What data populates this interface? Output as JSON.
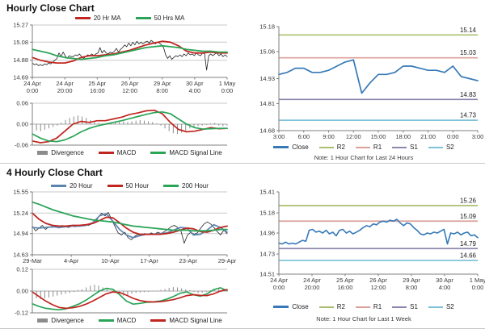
{
  "titles": {
    "hourly": "Hourly Close Chart",
    "four_hourly": "4 Hourly Close Chart"
  },
  "notes": {
    "hourly": "Note: 1 Hour Chart for Last 24 Hours",
    "four_hourly": "Note: 1 Hour Chart for Last 1 Week"
  },
  "colors": {
    "ma_red": "#c0251f",
    "ma_green": "#2aa558",
    "ma_blue": "#5b83b0",
    "close_blue": "#3579b8",
    "r2": "#a9bf6f",
    "r1": "#dca09a",
    "s1": "#8e86ae",
    "s2": "#7fc2d8",
    "divergence": "#8c8c8c",
    "price_black": "#222222"
  },
  "chart_data": [
    {
      "id": "hourly_price",
      "type": "line",
      "title": "Hourly Close Chart",
      "ylim": [
        14.69,
        15.27
      ],
      "yticks": [
        "15.27",
        "15.08",
        "14.88",
        "14.69"
      ],
      "gridlines": [
        15.27,
        15.08,
        14.88
      ],
      "x_labels": [
        "24 Apr|0:00",
        "24 Apr|20:00",
        "25 Apr|16:00",
        "26 Apr|12:00",
        "29 Apr|8:00",
        "30 Apr|4:00",
        "1 May|0:00"
      ],
      "legend": [
        {
          "label": "20 Hr MA",
          "color": "#c0251f",
          "swatch": "thick"
        },
        {
          "label": "50 Hrs MA",
          "color": "#2aa558",
          "swatch": "thick"
        }
      ],
      "series": [
        {
          "name": "Close",
          "color": "#222222",
          "width": 0.8,
          "values": [
            14.85,
            14.83,
            14.84,
            14.82,
            14.83,
            14.82,
            14.84,
            14.83,
            14.85,
            14.84,
            14.86,
            14.88,
            14.9,
            14.96,
            14.92,
            14.97,
            14.93,
            14.9,
            14.93,
            14.92,
            14.92,
            14.94,
            14.93,
            14.95,
            14.92,
            14.9,
            14.92,
            14.94,
            14.93,
            14.95,
            14.93,
            14.95,
            14.96,
            15.02,
            14.96,
            14.99,
            14.96,
            14.95,
            14.97,
            14.96,
            14.98,
            15.01,
            14.97,
            15.0,
            15.02,
            15.05,
            15.03,
            15.07,
            15.04,
            15.08,
            15.05,
            15.09,
            15.06,
            15.08,
            15.06,
            15.08,
            15.09,
            15.07,
            15.1,
            15.08,
            15.06,
            15.08,
            15.07,
            15.05,
            15.02,
            14.94,
            14.9,
            14.93,
            14.89,
            14.91,
            14.93,
            14.92,
            14.94,
            14.92,
            14.95,
            14.93,
            14.96,
            14.94,
            14.95,
            14.93,
            14.96,
            14.94,
            14.93,
            14.96,
            14.95,
            14.77,
            14.93,
            14.95,
            14.93,
            14.95,
            14.96,
            14.93,
            14.95,
            14.92,
            14.94,
            14.92
          ]
        },
        {
          "name": "20 Hr MA",
          "color": "#c0251f",
          "width": 1.8,
          "values": [
            14.91,
            14.88,
            14.86,
            14.85,
            14.85,
            14.87,
            14.91,
            14.93,
            14.93,
            14.94,
            14.95,
            14.97,
            14.99,
            15.02,
            15.05,
            15.07,
            15.09,
            15.08,
            15.04,
            14.98,
            14.96,
            14.96,
            14.97,
            14.96,
            14.96
          ]
        },
        {
          "name": "50 Hrs MA",
          "color": "#2aa558",
          "width": 1.8,
          "values": [
            15.0,
            14.98,
            14.96,
            14.93,
            14.91,
            14.9,
            14.89,
            14.9,
            14.91,
            14.93,
            14.94,
            14.96,
            14.98,
            15.0,
            15.02,
            15.03,
            15.04,
            15.03,
            15.02,
            15.0,
            14.99,
            14.98,
            14.98,
            14.97,
            14.97
          ]
        }
      ]
    },
    {
      "id": "hourly_macd",
      "type": "bar+line",
      "ylim": [
        -0.06,
        0.06
      ],
      "yticks": [
        "0.06",
        "0.00",
        "-0.06"
      ],
      "gridlines": [
        0.06,
        0
      ],
      "legend": [
        {
          "label": "Divergence",
          "color": "#8c8c8c",
          "swatch": "bar"
        },
        {
          "label": "MACD",
          "color": "#c0251f",
          "swatch": "thick"
        },
        {
          "label": "MACD Signal Line",
          "color": "#2aa558",
          "swatch": "thick"
        }
      ],
      "bars": {
        "name": "Divergence",
        "color": "#8c8c8c",
        "values": [
          -0.012,
          -0.018,
          -0.02,
          -0.016,
          -0.012,
          -0.008,
          -0.004,
          0.004,
          0.012,
          0.018,
          0.022,
          0.025,
          0.022,
          0.018,
          0.012,
          0.008,
          0.004,
          0.002,
          0.004,
          0.006,
          0.008,
          0.01,
          0.008,
          0.006,
          0.008,
          0.01,
          0.012,
          0.01,
          0.008,
          0.006,
          0.002,
          -0.004,
          -0.012,
          -0.02,
          -0.026,
          -0.028,
          -0.024,
          -0.018,
          -0.012,
          -0.008,
          -0.006,
          -0.004,
          -0.002,
          0.002,
          0.004,
          -0.004,
          -0.006,
          -0.004
        ]
      },
      "series": [
        {
          "name": "MACD",
          "color": "#c0251f",
          "width": 1.7,
          "values": [
            -0.048,
            -0.053,
            -0.05,
            -0.04,
            -0.02,
            0.0,
            0.008,
            0.005,
            0.01,
            0.01,
            0.015,
            0.02,
            0.028,
            0.032,
            0.038,
            0.04,
            0.03,
            0.005,
            -0.015,
            -0.022,
            -0.02,
            -0.015,
            -0.01,
            -0.013,
            -0.012
          ]
        },
        {
          "name": "MACD Signal Line",
          "color": "#2aa558",
          "width": 1.7,
          "values": [
            -0.028,
            -0.04,
            -0.048,
            -0.05,
            -0.045,
            -0.035,
            -0.022,
            -0.012,
            -0.005,
            0.0,
            0.005,
            0.01,
            0.016,
            0.022,
            0.028,
            0.033,
            0.035,
            0.03,
            0.015,
            0.0,
            -0.01,
            -0.014,
            -0.013,
            -0.012,
            -0.012
          ]
        }
      ]
    },
    {
      "id": "hourly_sr",
      "type": "line",
      "ylim": [
        14.68,
        15.18
      ],
      "yticks": [
        "15.18",
        "15.06",
        "14.93",
        "14.81",
        "14.68"
      ],
      "x_labels": [
        "3:00",
        "6:00",
        "9:00",
        "12:00",
        "15:00",
        "18:00",
        "21:00",
        "0:00",
        "3:00"
      ],
      "levels": [
        {
          "name": "R2",
          "value": 15.14,
          "label": "15.14",
          "color": "#a9bf6f"
        },
        {
          "name": "R1",
          "value": 15.03,
          "label": "15.03",
          "color": "#dca09a"
        },
        {
          "name": "S1",
          "value": 14.83,
          "label": "14.83",
          "color": "#8e86ae"
        },
        {
          "name": "S2",
          "value": 14.73,
          "label": "14.73",
          "color": "#7fc2d8"
        }
      ],
      "legend": [
        {
          "label": "Close",
          "color": "#3579b8",
          "swatch": "thick"
        },
        {
          "label": "R2",
          "color": "#a9bf6f",
          "swatch": "line"
        },
        {
          "label": "R1",
          "color": "#dca09a",
          "swatch": "line"
        },
        {
          "label": "S1",
          "color": "#8e86ae",
          "swatch": "line"
        },
        {
          "label": "S2",
          "color": "#7fc2d8",
          "swatch": "line"
        }
      ],
      "note": "Note: 1 Hour Chart for Last 24 Hours",
      "series": [
        {
          "name": "Close",
          "color": "#3579b8",
          "width": 1.7,
          "values": [
            14.95,
            14.96,
            14.98,
            14.98,
            14.96,
            14.96,
            14.97,
            14.99,
            15.01,
            15.02,
            14.86,
            14.91,
            14.95,
            14.95,
            14.96,
            14.99,
            14.99,
            14.98,
            14.97,
            14.97,
            14.96,
            14.99,
            14.94,
            14.93,
            14.92
          ]
        }
      ]
    },
    {
      "id": "fourh_price",
      "type": "line",
      "title": "4 Hourly Close Chart",
      "ylim": [
        14.63,
        15.55
      ],
      "yticks": [
        "15.55",
        "15.24",
        "14.94",
        "14.63"
      ],
      "gridlines": [
        15.55,
        15.24,
        14.94
      ],
      "x_labels": [
        "29-Mar",
        "4-Apr",
        "10-Apr",
        "17-Apr",
        "23-Apr",
        "29-Apr"
      ],
      "legend": [
        {
          "label": "20 Hour",
          "color": "#5b83b0",
          "swatch": "thick"
        },
        {
          "label": "50 Hour",
          "color": "#c0251f",
          "swatch": "thick"
        },
        {
          "label": "200 Hour",
          "color": "#2aa558",
          "swatch": "thick"
        }
      ],
      "series": [
        {
          "name": "Close",
          "color": "#222222",
          "width": 0.8,
          "values": [
            15.05,
            14.98,
            15.02,
            15.06,
            15.0,
            15.04,
            15.03,
            15.05,
            15.02,
            15.06,
            15.04,
            15.03,
            15.05,
            15.04,
            15.06,
            15.05,
            15.07,
            15.06,
            15.08,
            15.1,
            15.18,
            15.24,
            15.2,
            15.25,
            15.15,
            15.05,
            14.95,
            14.92,
            14.96,
            14.88,
            14.85,
            14.9,
            14.93,
            14.91,
            14.94,
            14.92,
            14.95,
            14.93,
            14.96,
            14.94,
            14.97,
            15.0,
            15.04,
            15.06,
            15.03,
            14.98,
            14.8,
            14.92,
            14.96,
            14.93,
            14.95,
            15.02,
            15.08,
            15.11,
            15.08,
            15.03,
            14.97,
            14.92,
            14.99,
            14.94
          ]
        },
        {
          "name": "20 Hour",
          "color": "#5b83b0",
          "width": 1.7,
          "values": [
            15.03,
            15.02,
            15.03,
            15.04,
            15.03,
            15.04,
            15.05,
            15.05,
            15.06,
            15.1,
            15.2,
            15.23,
            15.12,
            15.0,
            14.92,
            14.88,
            14.91,
            14.93,
            14.93,
            14.94,
            14.95,
            14.99,
            15.03,
            15.02,
            14.92,
            14.93,
            14.99,
            15.07,
            15.03,
            14.96
          ]
        },
        {
          "name": "50 Hour",
          "color": "#c0251f",
          "width": 1.8,
          "values": [
            15.24,
            15.15,
            15.09,
            15.06,
            15.05,
            15.05,
            15.06,
            15.06,
            15.07,
            15.09,
            15.13,
            15.18,
            15.17,
            15.1,
            15.02,
            14.96,
            14.93,
            14.93,
            14.93,
            14.93,
            14.94,
            14.96,
            14.99,
            15.02,
            15.01,
            14.97,
            14.96,
            14.99,
            15.03,
            15.05
          ]
        },
        {
          "name": "200 Hour",
          "color": "#2aa558",
          "width": 1.8,
          "values": [
            15.4,
            15.37,
            15.33,
            15.29,
            15.26,
            15.23,
            15.2,
            15.18,
            15.16,
            15.14,
            15.13,
            15.12,
            15.11,
            15.09,
            15.07,
            15.05,
            15.04,
            15.03,
            15.02,
            15.01,
            15.0,
            14.99,
            14.99,
            14.99,
            14.98,
            14.98,
            14.98,
            14.99,
            15.0,
            15.0
          ]
        }
      ]
    },
    {
      "id": "fourh_macd",
      "type": "bar+line",
      "ylim": [
        -0.12,
        0.12
      ],
      "yticks": [
        "0.12",
        "0.00",
        "-0.12"
      ],
      "gridlines": [
        0.12,
        0
      ],
      "legend": [
        {
          "label": "Divergence",
          "color": "#8c8c8c",
          "swatch": "bar"
        },
        {
          "label": "MACD",
          "color": "#2aa558",
          "swatch": "thick"
        },
        {
          "label": "MACD Signal Line",
          "color": "#c0251f",
          "swatch": "thick"
        }
      ],
      "bars": {
        "name": "Divergence",
        "color": "#8c8c8c",
        "values": [
          -0.03,
          -0.04,
          -0.045,
          -0.04,
          -0.035,
          -0.03,
          -0.025,
          -0.02,
          -0.015,
          -0.01,
          -0.005,
          0.005,
          0.01,
          0.02,
          0.03,
          0.035,
          0.03,
          0.02,
          0.01,
          0.002,
          -0.005,
          -0.015,
          -0.025,
          -0.02,
          -0.015,
          -0.01,
          -0.008,
          -0.006,
          -0.004,
          -0.002,
          0.002,
          0.006,
          0.012,
          0.018,
          0.022,
          0.02,
          0.015,
          0.01,
          0.005,
          -0.005,
          -0.012,
          -0.008,
          -0.004,
          0.004,
          0.01,
          0.015,
          0.012,
          0.006
        ]
      },
      "series": [
        {
          "name": "MACD",
          "color": "#2aa558",
          "width": 1.7,
          "values": [
            -0.07,
            -0.085,
            -0.095,
            -0.1,
            -0.103,
            -0.098,
            -0.085,
            -0.07,
            -0.05,
            -0.025,
            0.0,
            0.015,
            0.01,
            -0.02,
            -0.055,
            -0.072,
            -0.068,
            -0.062,
            -0.06,
            -0.055,
            -0.045,
            -0.03,
            -0.012,
            -0.005,
            -0.02,
            -0.028,
            -0.015,
            0.008,
            0.018,
            0.002
          ]
        },
        {
          "name": "MACD Signal Line",
          "color": "#c0251f",
          "width": 1.7,
          "values": [
            -0.005,
            -0.03,
            -0.055,
            -0.075,
            -0.09,
            -0.095,
            -0.092,
            -0.085,
            -0.072,
            -0.055,
            -0.035,
            -0.015,
            -0.005,
            -0.008,
            -0.022,
            -0.04,
            -0.052,
            -0.058,
            -0.06,
            -0.058,
            -0.054,
            -0.047,
            -0.037,
            -0.025,
            -0.02,
            -0.024,
            -0.025,
            -0.015,
            0.0,
            0.008
          ]
        }
      ]
    },
    {
      "id": "fourh_sr",
      "type": "line",
      "ylim": [
        14.51,
        15.41
      ],
      "yticks": [
        "15.41",
        "15.18",
        "14.96",
        "14.73",
        "14.51"
      ],
      "x_labels": [
        "24 Apr|0:00",
        "24 Apr|20:00",
        "25 Apr|16:00",
        "26 Apr|12:00",
        "29 Apr|8:00",
        "30 Apr|4:00",
        "1 May|0:00"
      ],
      "levels": [
        {
          "name": "R2",
          "value": 15.26,
          "label": "15.26",
          "color": "#a9bf6f"
        },
        {
          "name": "R1",
          "value": 15.09,
          "label": "15.09",
          "color": "#dca09a"
        },
        {
          "name": "S1",
          "value": 14.79,
          "label": "14.79",
          "color": "#8e86ae"
        },
        {
          "name": "S2",
          "value": 14.66,
          "label": "14.66",
          "color": "#7fc2d8"
        }
      ],
      "legend": [
        {
          "label": "Close",
          "color": "#3579b8",
          "swatch": "thick"
        },
        {
          "label": "R2",
          "color": "#a9bf6f",
          "swatch": "line"
        },
        {
          "label": "R1",
          "color": "#dca09a",
          "swatch": "line"
        },
        {
          "label": "S1",
          "color": "#8e86ae",
          "swatch": "line"
        },
        {
          "label": "S2",
          "color": "#7fc2d8",
          "swatch": "line"
        }
      ],
      "note": "Note: 1 Hour Chart for Last 1 Week",
      "series": [
        {
          "name": "Close",
          "color": "#3579b8",
          "width": 1.6,
          "values": [
            14.85,
            14.84,
            14.86,
            14.84,
            14.85,
            14.84,
            14.86,
            14.88,
            14.87,
            14.99,
            15.0,
            14.97,
            14.98,
            14.96,
            14.99,
            14.95,
            14.97,
            14.93,
            14.99,
            15.0,
            14.96,
            14.98,
            14.95,
            14.97,
            14.99,
            15.02,
            15.04,
            15.03,
            15.06,
            15.05,
            15.08,
            15.09,
            15.08,
            15.1,
            15.09,
            15.11,
            15.07,
            15.04,
            15.07,
            15.06,
            15.02,
            14.99,
            14.95,
            14.94,
            14.96,
            14.95,
            14.97,
            14.96,
            14.98,
            15.0,
            14.84,
            14.96,
            14.95,
            14.97,
            14.94,
            14.96,
            14.97,
            14.93,
            14.94,
            14.91
          ]
        }
      ]
    }
  ]
}
